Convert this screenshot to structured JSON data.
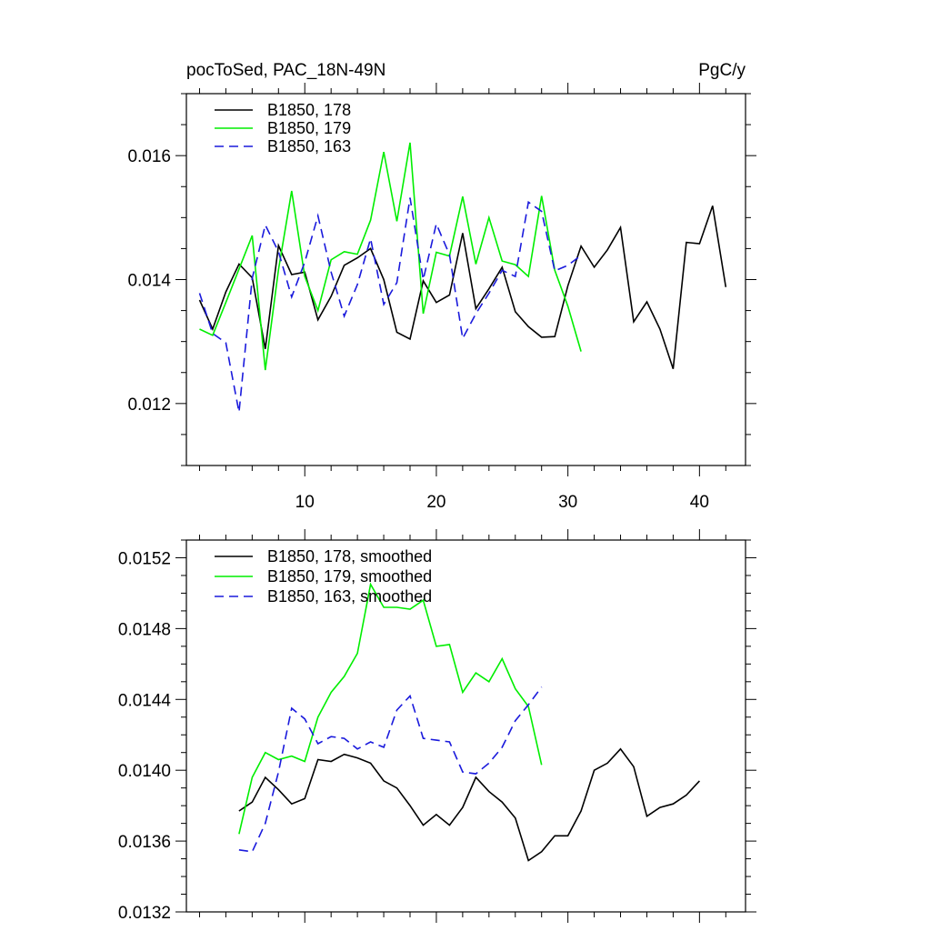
{
  "colors": {
    "black": "#000000",
    "green": "#00ee00",
    "blue": "#1a1adc",
    "axis": "#000000",
    "background": "#ffffff"
  },
  "chart_data": [
    {
      "type": "line",
      "title_left": "pocToSed, PAC_18N-49N",
      "title_right": "PgC/y",
      "xlabel": "",
      "ylabel": "",
      "xlim": [
        1,
        43.5
      ],
      "ylim": [
        0.011,
        0.017
      ],
      "x_major_ticks": [
        10,
        20,
        30,
        40
      ],
      "x_tick_labels": [
        "10",
        "20",
        "30",
        "40"
      ],
      "y_major_ticks": [
        0.012,
        0.014,
        0.016
      ],
      "y_tick_labels": [
        "0.012",
        "0.014",
        "0.016"
      ],
      "legend": "top-left",
      "series": [
        {
          "name": "B1850, 178",
          "color": "black",
          "dash": "solid",
          "x_start": 2,
          "values": [
            0.01367,
            0.0132,
            0.0138,
            0.01425,
            0.01403,
            0.01288,
            0.01455,
            0.01408,
            0.01412,
            0.01335,
            0.01373,
            0.01423,
            0.01435,
            0.0145,
            0.014,
            0.01315,
            0.01304,
            0.01398,
            0.01363,
            0.01375,
            0.01475,
            0.01353,
            0.01385,
            0.0142,
            0.01348,
            0.01324,
            0.01307,
            0.01308,
            0.0139,
            0.01454,
            0.0142,
            0.01448,
            0.01484,
            0.01332,
            0.01364,
            0.0132,
            0.01256,
            0.0146,
            0.01458,
            0.01519,
            0.01388
          ]
        },
        {
          "name": "B1850, 179",
          "color": "green",
          "dash": "solid",
          "x_start": 2,
          "values": [
            0.0132,
            0.0131,
            0.01363,
            0.01417,
            0.01471,
            0.01254,
            0.01416,
            0.01543,
            0.01405,
            0.0135,
            0.01432,
            0.01445,
            0.01441,
            0.01496,
            0.01606,
            0.01494,
            0.01621,
            0.01345,
            0.01444,
            0.01438,
            0.01534,
            0.01425,
            0.015,
            0.0143,
            0.01424,
            0.01405,
            0.01535,
            0.01415,
            0.01357,
            0.01284
          ]
        },
        {
          "name": "B1850, 163",
          "color": "blue",
          "dash": "dashed",
          "x_start": 2,
          "values": [
            0.01378,
            0.01313,
            0.01298,
            0.01186,
            0.01402,
            0.01488,
            0.01445,
            0.01372,
            0.01428,
            0.01503,
            0.01412,
            0.01341,
            0.01392,
            0.01466,
            0.0136,
            0.01395,
            0.01532,
            0.014,
            0.0149,
            0.0144,
            0.01305,
            0.01345,
            0.01378,
            0.01415,
            0.01405,
            0.01525,
            0.0151,
            0.01414,
            0.01423,
            0.01439
          ]
        }
      ]
    },
    {
      "type": "line",
      "title_left": "",
      "title_right": "",
      "xlabel": "",
      "ylabel": "",
      "xlim": [
        1,
        43.5
      ],
      "ylim": [
        0.0132,
        0.0153
      ],
      "x_major_ticks": [
        10,
        20,
        30,
        40
      ],
      "x_tick_labels": [],
      "y_major_ticks": [
        0.0132,
        0.0136,
        0.014,
        0.0144,
        0.0148,
        0.0152
      ],
      "y_tick_labels": [
        "0.0132",
        "0.0136",
        "0.0140",
        "0.0144",
        "0.0148",
        "0.0152"
      ],
      "legend": "top-left",
      "series": [
        {
          "name": "B1850, 178, smoothed",
          "color": "black",
          "dash": "solid",
          "x_start": 5,
          "values": [
            0.01377,
            0.01382,
            0.01396,
            0.01389,
            0.01381,
            0.01384,
            0.01406,
            0.01405,
            0.01409,
            0.01407,
            0.01404,
            0.01394,
            0.0139,
            0.0138,
            0.01369,
            0.01375,
            0.01369,
            0.01379,
            0.01396,
            0.01388,
            0.01382,
            0.01373,
            0.01349,
            0.01354,
            0.01363,
            0.01363,
            0.01377,
            0.014,
            0.01404,
            0.01412,
            0.01402,
            0.01374,
            0.01379,
            0.01381,
            0.01386,
            0.01394
          ]
        },
        {
          "name": "B1850, 179, smoothed",
          "color": "green",
          "dash": "solid",
          "x_start": 5,
          "values": [
            0.01364,
            0.01396,
            0.0141,
            0.01406,
            0.01408,
            0.01405,
            0.0143,
            0.01444,
            0.01453,
            0.01466,
            0.01505,
            0.01492,
            0.01492,
            0.01491,
            0.01496,
            0.0147,
            0.01471,
            0.01444,
            0.01455,
            0.0145,
            0.01463,
            0.01446,
            0.01436,
            0.01403
          ]
        },
        {
          "name": "B1850, 163, smoothed",
          "color": "blue",
          "dash": "dashed",
          "x_start": 5,
          "values": [
            0.01355,
            0.01354,
            0.0137,
            0.01399,
            0.01435,
            0.01429,
            0.01415,
            0.01419,
            0.01418,
            0.01412,
            0.01416,
            0.01413,
            0.01434,
            0.01442,
            0.01418,
            0.01417,
            0.01416,
            0.01399,
            0.01398,
            0.01404,
            0.01413,
            0.01428,
            0.01437,
            0.01447
          ]
        }
      ]
    }
  ]
}
